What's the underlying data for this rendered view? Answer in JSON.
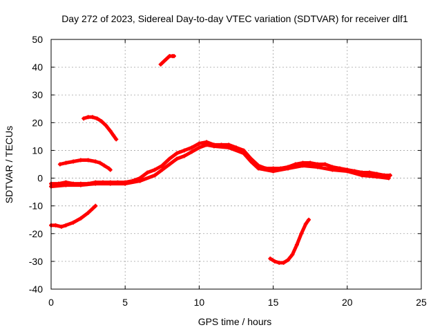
{
  "chart_data": {
    "type": "scatter",
    "title": "Day 272 of 2023, Sidereal Day-to-day VTEC variation (SDTVAR) for receiver dlf1",
    "xlabel": "GPS time / hours",
    "ylabel": "SDTVAR / TECUs",
    "xlim": [
      0,
      25
    ],
    "ylim": [
      -40,
      50
    ],
    "xticks": [
      0,
      5,
      10,
      15,
      20,
      25
    ],
    "yticks": [
      -40,
      -30,
      -20,
      -10,
      0,
      10,
      20,
      30,
      40,
      50
    ],
    "grid": true,
    "marker_color": "#ff0000",
    "series": [
      {
        "name": "main-track-a",
        "points": [
          [
            0,
            -2
          ],
          [
            0.5,
            -2
          ],
          [
            1,
            -1.5
          ],
          [
            1.5,
            -2
          ],
          [
            2,
            -2
          ],
          [
            2.5,
            -2
          ],
          [
            3,
            -1.5
          ],
          [
            3.5,
            -1.5
          ],
          [
            4,
            -1.5
          ],
          [
            4.5,
            -1.5
          ],
          [
            5,
            -1.5
          ],
          [
            5.5,
            -1
          ],
          [
            6,
            0
          ],
          [
            6.5,
            2
          ],
          [
            7,
            3
          ],
          [
            7.5,
            4.5
          ],
          [
            8,
            7
          ],
          [
            8.5,
            9
          ],
          [
            9,
            10
          ],
          [
            9.5,
            11
          ],
          [
            10,
            12.5
          ],
          [
            10.5,
            13
          ],
          [
            11,
            12
          ],
          [
            11.5,
            12
          ],
          [
            12,
            12
          ],
          [
            12.5,
            11
          ],
          [
            13,
            10
          ],
          [
            13.5,
            7
          ],
          [
            14,
            4.5
          ],
          [
            14.5,
            3.5
          ],
          [
            15,
            3.5
          ],
          [
            15.5,
            3.5
          ],
          [
            16,
            4
          ],
          [
            16.5,
            5
          ],
          [
            17,
            5.5
          ],
          [
            17.5,
            5.5
          ],
          [
            18,
            5
          ],
          [
            18.5,
            5
          ],
          [
            19,
            4
          ],
          [
            19.5,
            3.5
          ],
          [
            20,
            3
          ],
          [
            20.5,
            2.5
          ],
          [
            21,
            2
          ],
          [
            21.5,
            2
          ],
          [
            22,
            1.5
          ],
          [
            22.5,
            1
          ],
          [
            22.9,
            1
          ]
        ]
      },
      {
        "name": "main-track-b",
        "points": [
          [
            0,
            -3
          ],
          [
            1,
            -2.5
          ],
          [
            2,
            -2.5
          ],
          [
            3,
            -2
          ],
          [
            4,
            -2
          ],
          [
            5,
            -2
          ],
          [
            6,
            -1
          ],
          [
            7,
            1
          ],
          [
            7.5,
            3
          ],
          [
            8,
            5
          ],
          [
            8.5,
            7
          ],
          [
            9,
            8
          ],
          [
            9.5,
            9.5
          ],
          [
            10,
            11
          ],
          [
            10.5,
            12
          ],
          [
            11,
            11.5
          ],
          [
            12,
            11
          ],
          [
            13,
            9
          ],
          [
            13.5,
            6
          ],
          [
            14,
            3.5
          ],
          [
            15,
            2.5
          ],
          [
            16,
            3.5
          ],
          [
            17,
            4.5
          ],
          [
            18,
            4
          ],
          [
            19,
            3
          ],
          [
            20,
            2.5
          ],
          [
            21,
            1
          ],
          [
            22,
            0.5
          ],
          [
            22.8,
            0
          ]
        ]
      },
      {
        "name": "arc-upper-left",
        "points": [
          [
            0.6,
            5
          ],
          [
            1,
            5.5
          ],
          [
            1.5,
            6
          ],
          [
            2,
            6.5
          ],
          [
            2.5,
            6.5
          ],
          [
            3,
            6
          ],
          [
            3.3,
            5.5
          ],
          [
            3.6,
            4.5
          ],
          [
            3.9,
            3.5
          ],
          [
            4,
            3
          ]
        ]
      },
      {
        "name": "arc-twenty",
        "points": [
          [
            2.2,
            21.5
          ],
          [
            2.5,
            22
          ],
          [
            2.8,
            22
          ],
          [
            3.1,
            21.5
          ],
          [
            3.4,
            20.5
          ],
          [
            3.7,
            19
          ],
          [
            4,
            17
          ],
          [
            4.2,
            15.5
          ],
          [
            4.4,
            14
          ]
        ]
      },
      {
        "name": "arc-forty",
        "points": [
          [
            7.4,
            41
          ],
          [
            7.6,
            42
          ],
          [
            7.8,
            43
          ],
          [
            8,
            44
          ],
          [
            8.2,
            44
          ],
          [
            8.3,
            44
          ]
        ]
      },
      {
        "name": "descending-left",
        "points": [
          [
            0,
            -17
          ],
          [
            0.3,
            -17
          ],
          [
            0.7,
            -17.5
          ],
          [
            1,
            -17
          ],
          [
            1.5,
            -16
          ],
          [
            2,
            -14.5
          ],
          [
            2.5,
            -12.5
          ],
          [
            2.8,
            -11
          ],
          [
            3,
            -10
          ]
        ]
      },
      {
        "name": "dip-fifteen",
        "points": [
          [
            14.8,
            -29
          ],
          [
            15.1,
            -30
          ],
          [
            15.4,
            -30.5
          ],
          [
            15.7,
            -30.5
          ],
          [
            16,
            -29.5
          ],
          [
            16.3,
            -27.5
          ],
          [
            16.6,
            -24
          ],
          [
            16.9,
            -20
          ],
          [
            17.2,
            -16.5
          ],
          [
            17.4,
            -15
          ]
        ]
      }
    ]
  }
}
